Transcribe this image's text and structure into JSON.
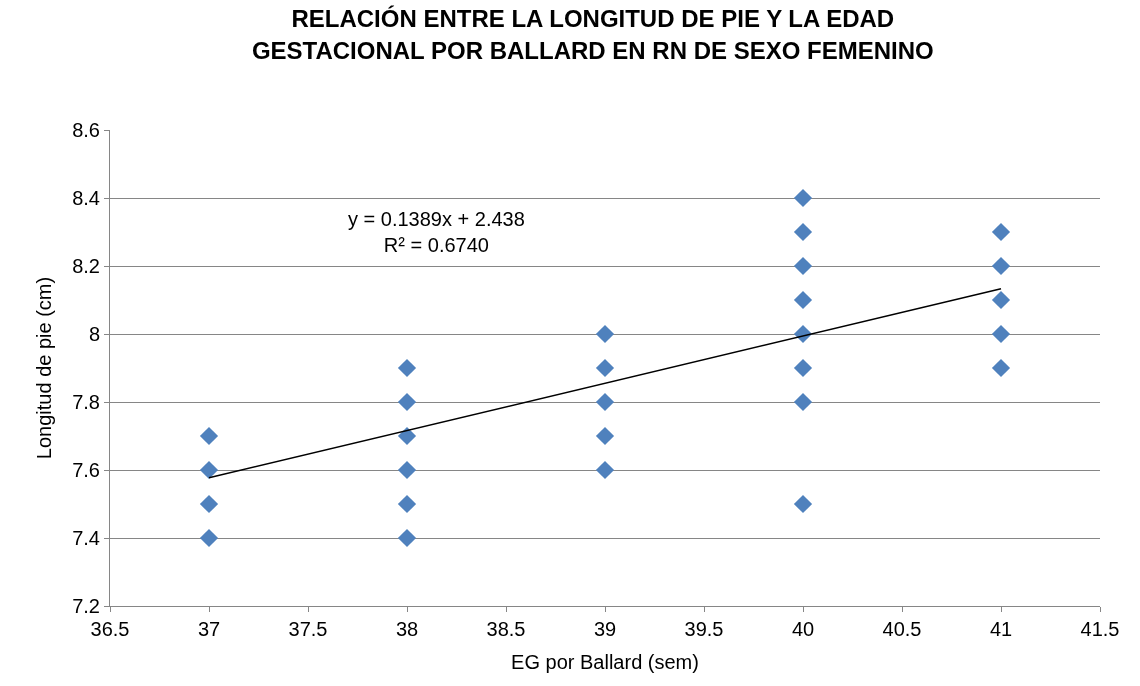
{
  "chart_data": {
    "type": "scatter",
    "title": "RELACIÓN ENTRE LA LONGITUD DE PIE Y LA EDAD\nGESTACIONAL POR BALLARD EN RN DE SEXO FEMENINO",
    "xlabel": "EG por Ballard (sem)",
    "ylabel": "Longitud de pie (cm)",
    "annotations": [
      "y = 0.1389x + 2.438\nR² = 0.6740"
    ],
    "series": [
      {
        "color": "#4f81bd",
        "marker": "diamond",
        "x": [
          37,
          37,
          37,
          37,
          38,
          38,
          38,
          38,
          38,
          38,
          39,
          39,
          39,
          39,
          39,
          40,
          40,
          40,
          40,
          40,
          40,
          40,
          40,
          41,
          41,
          41,
          41,
          41
        ],
        "values": [
          7.7,
          7.6,
          7.5,
          7.4,
          7.9,
          7.8,
          7.7,
          7.6,
          7.5,
          7.4,
          8.0,
          7.9,
          7.8,
          7.7,
          7.6,
          8.4,
          8.3,
          8.2,
          8.1,
          8.0,
          7.9,
          7.8,
          7.5,
          8.3,
          8.2,
          8.1,
          8.0,
          7.9
        ]
      },
      {
        "type": "line",
        "color": "#000000",
        "marker": "none",
        "x": [
          37,
          41
        ],
        "values": [
          7.577,
          8.133
        ]
      }
    ],
    "xlim": [
      36.5,
      41.5
    ],
    "xticks": [
      36.5,
      37,
      37.5,
      38,
      38.5,
      39,
      39.5,
      40,
      40.5,
      41,
      41.5
    ],
    "ylim": [
      7.2,
      8.6
    ],
    "yticks": [
      7.2,
      7.4,
      7.6,
      7.8,
      8,
      8.2,
      8.4,
      8.6
    ],
    "grid": "y"
  }
}
